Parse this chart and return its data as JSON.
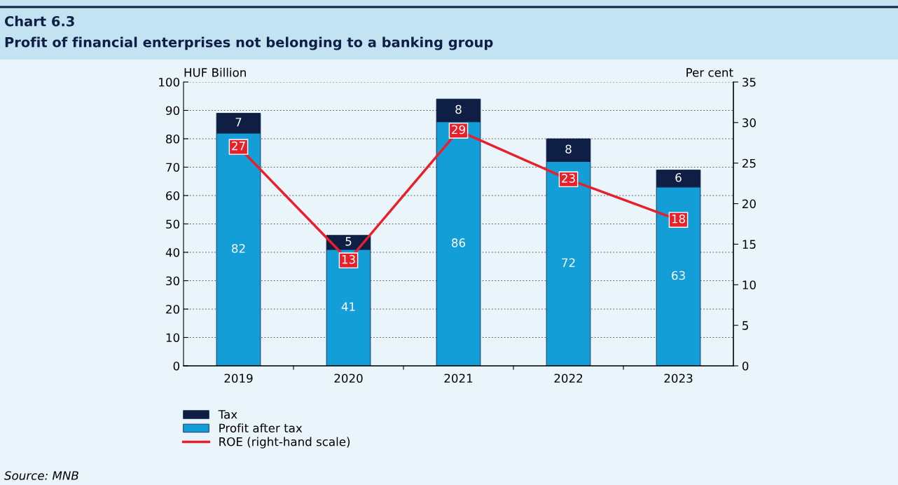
{
  "chart_data": {
    "type": "bar",
    "title": "Chart 6.3",
    "subtitle": "Profit of financial enterprises not belonging to a banking group",
    "ylabel": "HUF Billion",
    "y2label": "Per cent",
    "categories": [
      "2019",
      "2020",
      "2021",
      "2022",
      "2023"
    ],
    "stacked": true,
    "data_labels": true,
    "series": [
      {
        "name": "Profit after tax",
        "color": "#139ed8",
        "values": [
          82,
          41,
          86,
          72,
          63
        ]
      },
      {
        "name": "Tax",
        "color": "#0e1e45",
        "values": [
          7,
          5,
          8,
          8,
          6
        ]
      },
      {
        "name": "ROE (right-hand scale)",
        "type": "line",
        "axis": "y2",
        "color": "#e8202a",
        "marker": "square",
        "values": [
          27,
          13,
          29,
          23,
          18
        ]
      }
    ],
    "ylim": [
      0,
      100
    ],
    "yticks": [
      0,
      10,
      20,
      30,
      40,
      50,
      60,
      70,
      80,
      90,
      100
    ],
    "y2lim": [
      0,
      35
    ],
    "y2ticks": [
      0,
      5,
      10,
      15,
      20,
      25,
      30,
      35
    ],
    "grid": "y",
    "legend": "bottom",
    "annotations": [
      "Source: MNB"
    ]
  }
}
